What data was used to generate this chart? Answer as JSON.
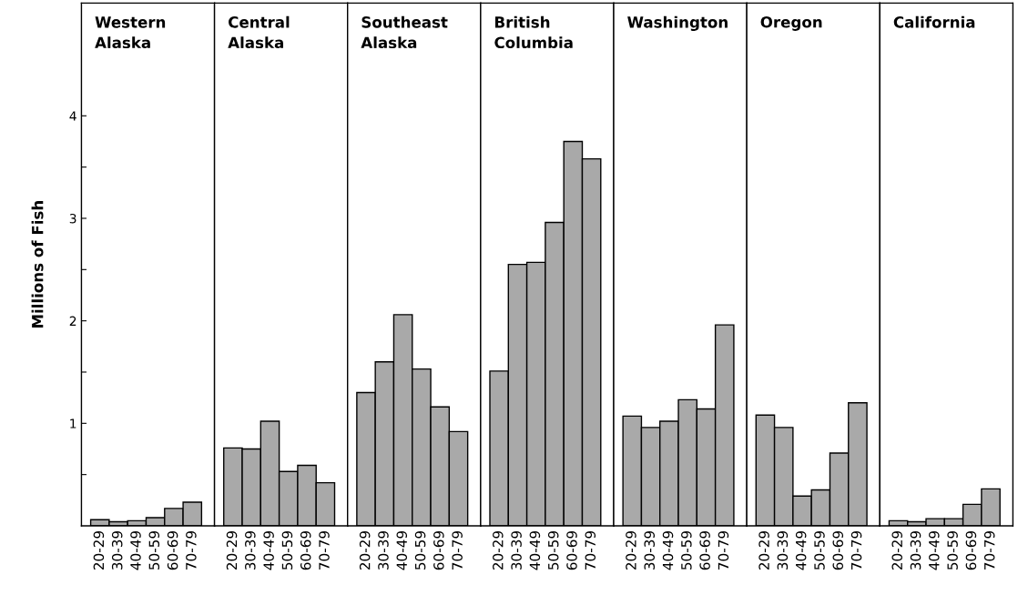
{
  "chart_data": [
    {
      "type": "bar",
      "title": "Western\nAlaska",
      "ylabel": "Millions of Fish",
      "categories": [
        "20-29",
        "30-39",
        "40-49",
        "50-59",
        "60-69",
        "70-79"
      ],
      "values": [
        0.06,
        0.04,
        0.05,
        0.08,
        0.17,
        0.23
      ],
      "color": "#a9a9a9",
      "ylim": [
        0,
        5.1
      ],
      "yticks": [
        {
          "value": 0.5,
          "label": null
        },
        1,
        {
          "value": 1.5,
          "label": null
        },
        2,
        {
          "value": 2.5,
          "label": null
        },
        3,
        {
          "value": 3.5,
          "label": null
        },
        4
      ],
      "grid": false
    },
    {
      "type": "bar",
      "title": "Central\nAlaska",
      "categories": [
        "20-29",
        "30-39",
        "40-49",
        "50-59",
        "60-69",
        "70-79"
      ],
      "values": [
        0.76,
        0.75,
        1.02,
        0.53,
        0.59,
        0.42
      ],
      "color": "#a9a9a9",
      "ylim": [
        0,
        5.1
      ],
      "tick_labels": "x",
      "grid": false
    },
    {
      "type": "bar",
      "title": "Southeast\nAlaska",
      "categories": [
        "20-29",
        "30-39",
        "40-49",
        "50-59",
        "60-69",
        "70-79"
      ],
      "values": [
        1.3,
        1.6,
        2.06,
        1.53,
        1.16,
        0.92
      ],
      "color": "#a9a9a9",
      "ylim": [
        0,
        5.1
      ],
      "tick_labels": "x",
      "grid": false
    },
    {
      "type": "bar",
      "title": "British\nColumbia",
      "categories": [
        "20-29",
        "30-39",
        "40-49",
        "50-59",
        "60-69",
        "70-79"
      ],
      "values": [
        1.51,
        2.55,
        2.57,
        2.96,
        3.75,
        3.58
      ],
      "color": "#a9a9a9",
      "ylim": [
        0,
        5.1
      ],
      "tick_labels": "x",
      "grid": false
    },
    {
      "type": "bar",
      "title": "Washington",
      "categories": [
        "20-29",
        "30-39",
        "40-49",
        "50-59",
        "60-69",
        "70-79"
      ],
      "values": [
        1.07,
        0.96,
        1.02,
        1.23,
        1.14,
        1.96
      ],
      "color": "#a9a9a9",
      "ylim": [
        0,
        5.1
      ],
      "tick_labels": "x",
      "grid": false
    },
    {
      "type": "bar",
      "title": "Oregon",
      "categories": [
        "20-29",
        "30-39",
        "40-49",
        "50-59",
        "60-69",
        "70-79"
      ],
      "values": [
        1.08,
        0.96,
        0.29,
        0.35,
        0.71,
        1.2
      ],
      "color": "#a9a9a9",
      "ylim": [
        0,
        5.1
      ],
      "tick_labels": "x",
      "grid": false
    },
    {
      "type": "bar",
      "title": "California",
      "categories": [
        "20-29",
        "30-39",
        "40-49",
        "50-59",
        "60-69",
        "70-79"
      ],
      "values": [
        0.05,
        0.04,
        0.07,
        0.07,
        0.21,
        0.36
      ],
      "color": "#a9a9a9",
      "ylim": [
        0,
        5.1
      ],
      "tick_labels": "x",
      "grid": false
    }
  ]
}
